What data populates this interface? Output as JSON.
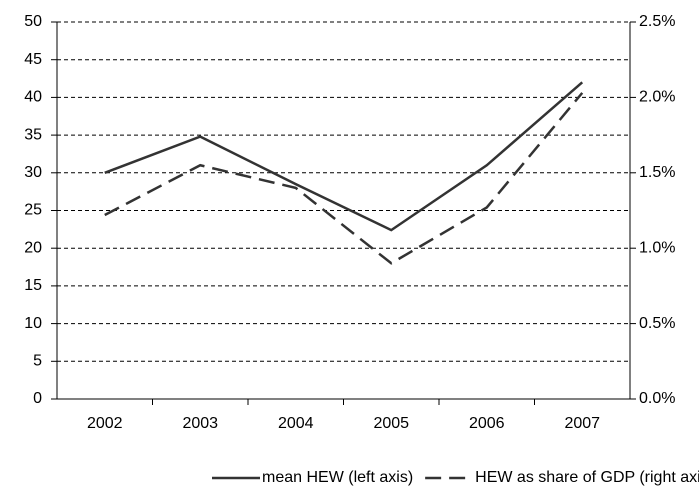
{
  "chart_data": {
    "type": "line",
    "categories": [
      "2002",
      "2003",
      "2004",
      "2005",
      "2006",
      "2007"
    ],
    "series": [
      {
        "name": "mean HEW (left axis)",
        "color": "#333333",
        "values": [
          30,
          34.8,
          28.5,
          22.4,
          31,
          42
        ]
      },
      {
        "name": "HEW as share of GDP (right axis)",
        "color": "#333333",
        "axis": "y2",
        "dashed": true,
        "values": [
          1.22,
          1.55,
          1.4,
          0.9,
          1.27,
          2.03
        ]
      }
    ],
    "ylim": [
      0,
      50
    ],
    "yticks": [
      0,
      5,
      10,
      15,
      20,
      25,
      30,
      35,
      40,
      45,
      50
    ],
    "y2lim": [
      0,
      2.5
    ],
    "y2ticks": [
      {
        "value": 0,
        "label": "0.0%"
      },
      {
        "value": 0.5,
        "label": "0.5%"
      },
      {
        "value": 1,
        "label": "1.0%"
      },
      {
        "value": 1.5,
        "label": "1.5%"
      },
      {
        "value": 2,
        "label": "2.0%"
      },
      {
        "value": 2.5,
        "label": "2.5%"
      }
    ],
    "grid": true,
    "legend": "bottom"
  }
}
